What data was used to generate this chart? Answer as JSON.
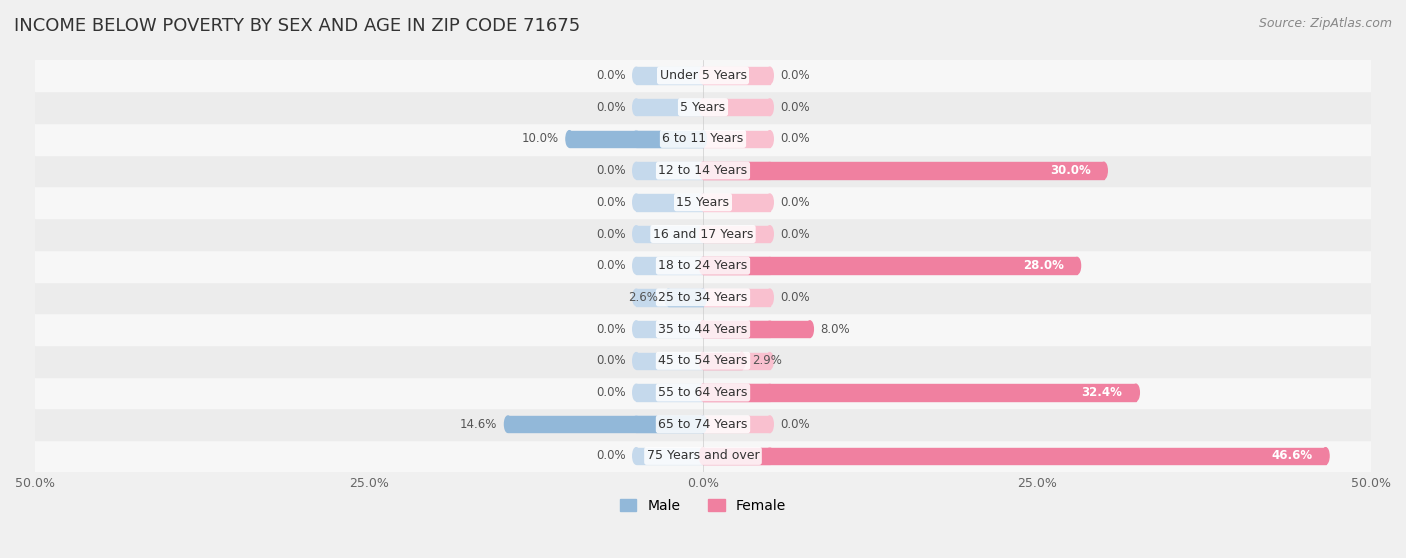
{
  "title": "INCOME BELOW POVERTY BY SEX AND AGE IN ZIP CODE 71675",
  "source": "Source: ZipAtlas.com",
  "categories": [
    "Under 5 Years",
    "5 Years",
    "6 to 11 Years",
    "12 to 14 Years",
    "15 Years",
    "16 and 17 Years",
    "18 to 24 Years",
    "25 to 34 Years",
    "35 to 44 Years",
    "45 to 54 Years",
    "55 to 64 Years",
    "65 to 74 Years",
    "75 Years and over"
  ],
  "male": [
    0.0,
    0.0,
    10.0,
    0.0,
    0.0,
    0.0,
    0.0,
    2.6,
    0.0,
    0.0,
    0.0,
    14.6,
    0.0
  ],
  "female": [
    0.0,
    0.0,
    0.0,
    30.0,
    0.0,
    0.0,
    28.0,
    0.0,
    8.0,
    2.9,
    32.4,
    0.0,
    46.6
  ],
  "male_color": "#92b8d9",
  "female_color": "#f080a0",
  "male_stub_color": "#c5d9ec",
  "female_stub_color": "#f9c0cf",
  "xlim": 50.0,
  "stub_size": 5.0,
  "bar_height": 0.52,
  "bg_color": "#f0f0f0",
  "row_bg_even": "#f7f7f7",
  "row_bg_odd": "#ececec",
  "title_fontsize": 13,
  "source_fontsize": 9,
  "label_fontsize": 8.5,
  "cat_fontsize": 9,
  "tick_fontsize": 9,
  "legend_fontsize": 10
}
